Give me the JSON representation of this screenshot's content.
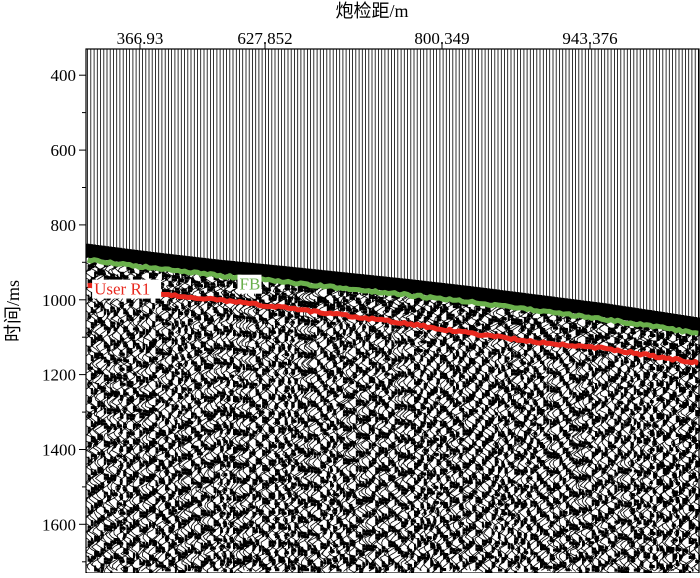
{
  "chart_data": {
    "type": "seismic-gather",
    "title": "",
    "xlabel": "炮检距/m",
    "ylabel": "时间/ms",
    "x_ticks": [
      "366.93",
      "627.852",
      "800.349",
      "943.376"
    ],
    "y_ticks": [
      400,
      600,
      800,
      1000,
      1200,
      1400,
      1600
    ],
    "ylim": [
      330,
      1730
    ],
    "grid": false,
    "trace_count": 190,
    "series": [
      {
        "name": "FB",
        "color": "#6ab04c",
        "trace_index": [
          0,
          20,
          40,
          60,
          80,
          100,
          120,
          140,
          160,
          180,
          189
        ],
        "time_ms": [
          893,
          915,
          935,
          952,
          970,
          988,
          1008,
          1030,
          1052,
          1078,
          1090
        ]
      },
      {
        "name": "User R1",
        "color": "#e8281e",
        "trace_index": [
          0,
          20,
          40,
          60,
          80,
          100,
          120,
          140,
          160,
          180,
          189
        ],
        "time_ms": [
          963,
          982,
          1000,
          1020,
          1042,
          1065,
          1092,
          1113,
          1130,
          1157,
          1168
        ]
      }
    ]
  }
}
